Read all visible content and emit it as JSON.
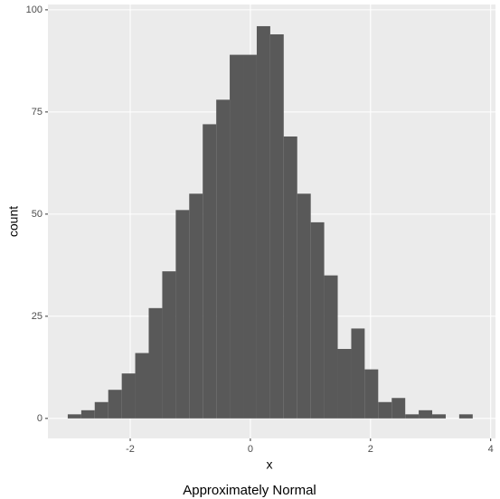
{
  "chart_data": {
    "type": "histogram",
    "caption": "Approximately Normal",
    "x_label": "x",
    "y_label": "count",
    "bins": [
      -3.04,
      -2.815,
      -2.591,
      -2.366,
      -2.141,
      -1.917,
      -1.692,
      -1.467,
      -1.242,
      -1.018,
      -0.793,
      -0.568,
      -0.344,
      -0.119,
      0.106,
      0.331,
      0.555,
      0.78,
      1.005,
      1.229,
      1.454,
      1.679,
      1.903,
      2.128,
      2.353,
      2.578,
      2.802,
      3.027,
      3.252,
      3.476,
      3.701
    ],
    "values": [
      1,
      2,
      4,
      7,
      11,
      16,
      27,
      36,
      51,
      55,
      72,
      78,
      89,
      89,
      96,
      94,
      69,
      55,
      48,
      35,
      17,
      22,
      12,
      4,
      5,
      1,
      2,
      1,
      0,
      1
    ],
    "color": "#595959",
    "xlim": [
      -3.37,
      4.08
    ],
    "xticks": [
      -2,
      0,
      2,
      4
    ],
    "ylim": [
      -4.9,
      101.3
    ],
    "yticks": [
      0,
      25,
      50,
      75,
      100
    ],
    "grid": true
  }
}
